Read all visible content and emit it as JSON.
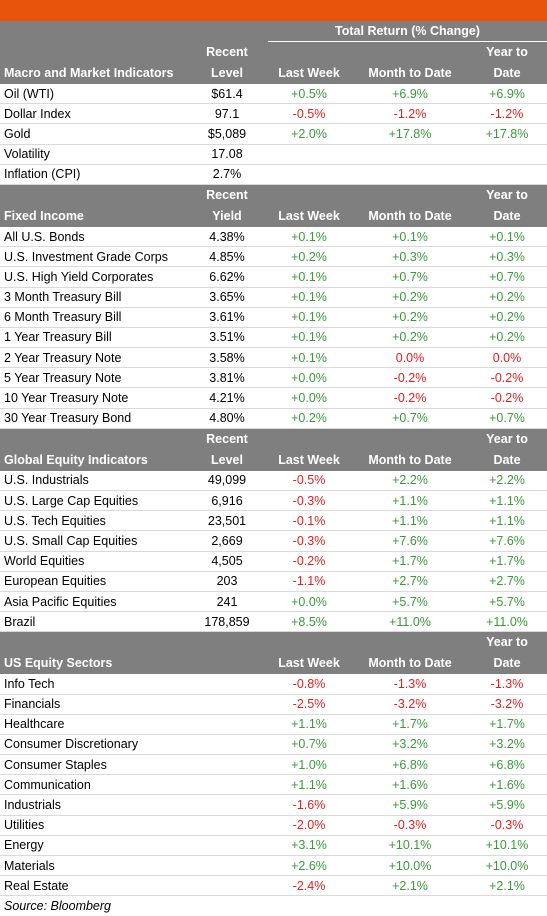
{
  "title": "Total Return (% Change)",
  "columns": {
    "recent_level": [
      "Recent",
      "Level"
    ],
    "recent_yield": [
      "Recent",
      "Yield"
    ],
    "last_week": "Last Week",
    "month_to_date": "Month to Date",
    "year_to_date": [
      "Year to",
      "Date"
    ]
  },
  "colors": {
    "accent": "#e8540c",
    "header_bg": "#7f7f7f",
    "positive": "#3a9a3a",
    "negative": "#e02020"
  },
  "sections": [
    {
      "name": "Macro and Market Indicators",
      "level_header": "level",
      "rows": [
        [
          "Oil (WTI)",
          "$61.4",
          "+0.5%",
          "+6.9%",
          "+6.9%"
        ],
        [
          "Dollar Index",
          "97.1",
          "-0.5%",
          "-1.2%",
          "-1.2%"
        ],
        [
          "Gold",
          "$5,089",
          "+2.0%",
          "+17.8%",
          "+17.8%"
        ],
        [
          "Volatility",
          "17.08",
          "",
          "",
          ""
        ],
        [
          "Inflation (CPI)",
          "2.7%",
          "",
          "",
          ""
        ]
      ]
    },
    {
      "name": "Fixed Income",
      "level_header": "yield",
      "rows": [
        [
          "All U.S. Bonds",
          "4.38%",
          "+0.1%",
          "+0.1%",
          "+0.1%"
        ],
        [
          "U.S. Investment Grade Corps",
          "4.85%",
          "+0.2%",
          "+0.3%",
          "+0.3%"
        ],
        [
          "U.S. High Yield Corporates",
          "6.62%",
          "+0.1%",
          "+0.7%",
          "+0.7%"
        ],
        [
          "3 Month Treasury Bill",
          "3.65%",
          "+0.1%",
          "+0.2%",
          "+0.2%"
        ],
        [
          "6 Month Treasury Bill",
          "3.61%",
          "+0.1%",
          "+0.2%",
          "+0.2%"
        ],
        [
          "1 Year Treasury Bill",
          "3.51%",
          "+0.1%",
          "+0.2%",
          "+0.2%"
        ],
        [
          "2 Year Treasury Note",
          "3.58%",
          "+0.1%",
          "0.0%",
          "0.0%"
        ],
        [
          "5 Year Treasury Note",
          "3.81%",
          "+0.0%",
          "-0.2%",
          "-0.2%"
        ],
        [
          "10 Year Treasury Note",
          "4.21%",
          "+0.0%",
          "-0.2%",
          "-0.2%"
        ],
        [
          "30 Year Treasury Bond",
          "4.80%",
          "+0.2%",
          "+0.7%",
          "+0.7%"
        ]
      ]
    },
    {
      "name": "Global Equity Indicators",
      "level_header": "level",
      "rows": [
        [
          "U.S. Industrials",
          "49,099",
          "-0.5%",
          "+2.2%",
          "+2.2%"
        ],
        [
          "U.S. Large Cap Equities",
          "6,916",
          "-0.3%",
          "+1.1%",
          "+1.1%"
        ],
        [
          "U.S. Tech Equities",
          "23,501",
          "-0.1%",
          "+1.1%",
          "+1.1%"
        ],
        [
          "U.S. Small Cap Equities",
          "2,669",
          "-0.3%",
          "+7.6%",
          "+7.6%"
        ],
        [
          "World Equities",
          "4,505",
          "-0.2%",
          "+1.7%",
          "+1.7%"
        ],
        [
          "European Equities",
          "203",
          "-1.1%",
          "+2.7%",
          "+2.7%"
        ],
        [
          "Asia Pacific Equities",
          "241",
          "+0.0%",
          "+5.7%",
          "+5.7%"
        ],
        [
          "Brazil",
          "178,859",
          "+8.5%",
          "+11.0%",
          "+11.0%"
        ]
      ]
    },
    {
      "name": "US Equity Sectors",
      "level_header": "none",
      "rows": [
        [
          "Info Tech",
          "",
          "-0.8%",
          "-1.3%",
          "-1.3%"
        ],
        [
          "Financials",
          "",
          "-2.5%",
          "-3.2%",
          "-3.2%"
        ],
        [
          "Healthcare",
          "",
          "+1.1%",
          "+1.7%",
          "+1.7%"
        ],
        [
          "Consumer Discretionary",
          "",
          "+0.7%",
          "+3.2%",
          "+3.2%"
        ],
        [
          "Consumer Staples",
          "",
          "+1.0%",
          "+6.8%",
          "+6.8%"
        ],
        [
          "Communication",
          "",
          "+1.1%",
          "+1.6%",
          "+1.6%"
        ],
        [
          "Industrials",
          "",
          "-1.6%",
          "+5.9%",
          "+5.9%"
        ],
        [
          "Utilities",
          "",
          "-2.0%",
          "-0.3%",
          "-0.3%"
        ],
        [
          "Energy",
          "",
          "+3.1%",
          "+10.1%",
          "+10.1%"
        ],
        [
          "Materials",
          "",
          "+2.6%",
          "+10.0%",
          "+10.0%"
        ],
        [
          "Real Estate",
          "",
          "-2.4%",
          "+2.1%",
          "+2.1%"
        ]
      ]
    }
  ],
  "source": "Source: Bloomberg"
}
